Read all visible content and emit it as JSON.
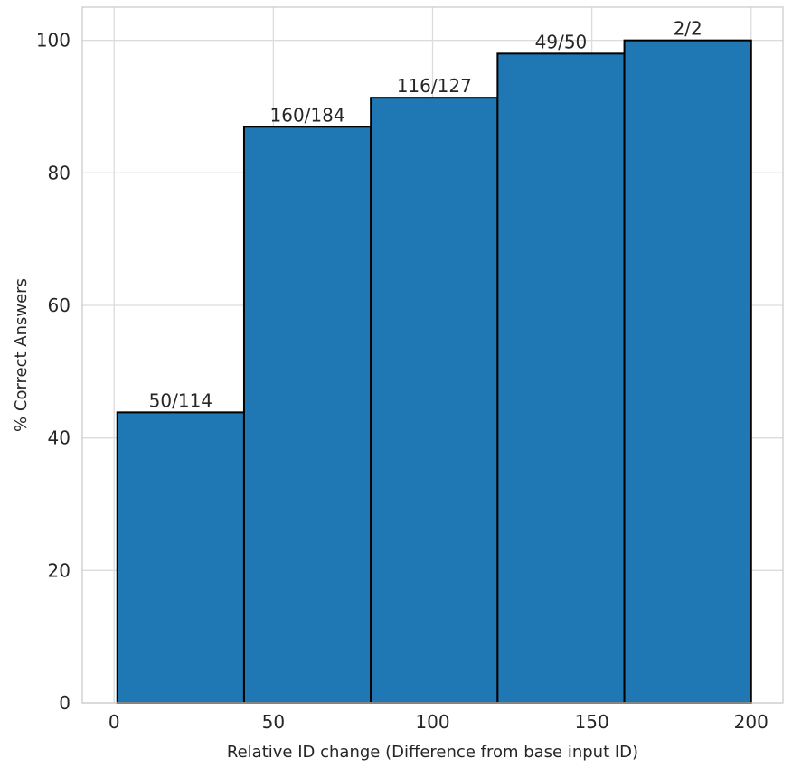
{
  "chart_data": {
    "type": "bar",
    "variant": "histogram",
    "title": "",
    "xlabel": "Relative ID change (Difference from base input ID)",
    "ylabel": "% Correct Answers",
    "bins": [
      {
        "range": [
          1,
          40.8
        ],
        "label": "50/114",
        "correct": 50,
        "total": 114,
        "percent": 43.86
      },
      {
        "range": [
          40.8,
          80.6
        ],
        "label": "160/184",
        "correct": 160,
        "total": 184,
        "percent": 86.96
      },
      {
        "range": [
          80.6,
          120.4
        ],
        "label": "116/127",
        "correct": 116,
        "total": 127,
        "percent": 91.34
      },
      {
        "range": [
          120.4,
          160.2
        ],
        "label": "49/50",
        "correct": 49,
        "total": 50,
        "percent": 98.0
      },
      {
        "range": [
          160.2,
          200
        ],
        "label": "2/2",
        "correct": 2,
        "total": 2,
        "percent": 100.0
      }
    ],
    "xticks": [
      "0",
      "50",
      "100",
      "150",
      "200"
    ],
    "xtick_values": [
      0,
      50,
      100,
      150,
      200
    ],
    "yticks": [
      "0",
      "20",
      "40",
      "60",
      "80",
      "100"
    ],
    "ytick_values": [
      0,
      20,
      40,
      60,
      80,
      100
    ],
    "xlim": [
      -10,
      210
    ],
    "ylim": [
      0,
      105
    ],
    "grid": true,
    "legend": null,
    "colors": {
      "bar_fill": "#1f77b4",
      "bar_edge": "#000000",
      "grid": "#dcdcdc",
      "spine": "#cccccc",
      "text": "#262626",
      "background": "#ffffff"
    }
  }
}
